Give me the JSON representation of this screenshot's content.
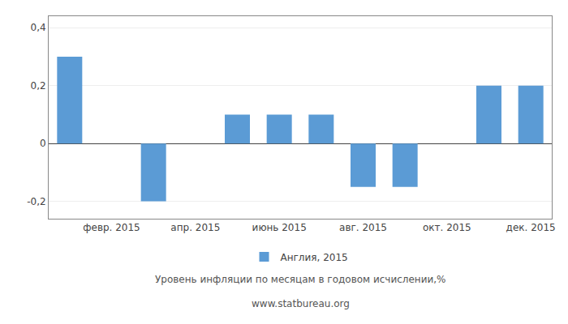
{
  "chart_data": {
    "type": "bar",
    "categories": [
      null,
      "февр. 2015",
      null,
      "апр. 2015",
      null,
      "июнь 2015",
      null,
      "авг. 2015",
      null,
      "окт. 2015",
      null,
      "дек. 2015"
    ],
    "series": [
      {
        "name": "Англия, 2015",
        "color": "#5b9bd5",
        "values": [
          0.3,
          0.0,
          -0.2,
          0.0,
          0.1,
          0.1,
          0.1,
          -0.15,
          -0.15,
          0.0,
          0.2,
          0.2
        ]
      }
    ],
    "ylim": [
      -0.26,
      0.44
    ],
    "yticks": [
      {
        "value": -0.2,
        "label": "-0,2"
      },
      0,
      {
        "value": 0.2,
        "label": "0,2"
      },
      {
        "value": 0.4,
        "label": "0,4"
      }
    ],
    "grid": true,
    "legend": "bottom",
    "annotations": [
      "Уровень инфляции по месяцам в годовом исчислении,%",
      "www.statbureau.org"
    ]
  }
}
